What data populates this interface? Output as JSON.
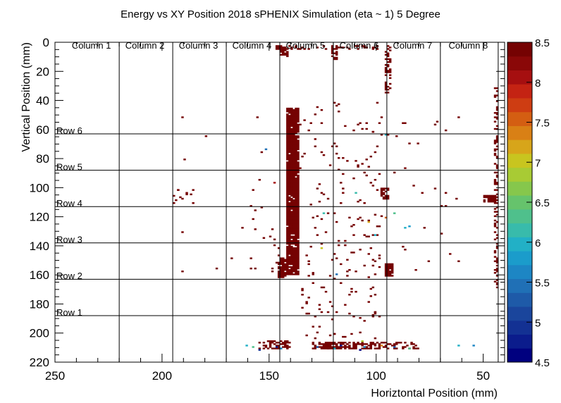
{
  "chart_data": {
    "type": "heatmap",
    "title": "Energy vs XY Position 2018 sPHENIX Simulation (eta ~ 1) 5 Degree",
    "xlabel": "Horiztontal Position (mm)",
    "ylabel": "Vertical Position (mm)",
    "xlim": [
      250,
      40
    ],
    "ylim": [
      0,
      220
    ],
    "x_ticks": [
      250,
      200,
      150,
      100,
      50
    ],
    "y_ticks": [
      0,
      20,
      40,
      60,
      80,
      100,
      120,
      140,
      160,
      180,
      200,
      220
    ],
    "zlim": [
      4.5,
      8.5
    ],
    "z_ticks": [
      "4.5",
      "5",
      "5.5",
      "6",
      "6.5",
      "7",
      "7.5",
      "8",
      "8.5"
    ],
    "palette": [
      "#00007f",
      "#0b1c8c",
      "#133193",
      "#1a459c",
      "#1e5aa8",
      "#2070b6",
      "#1d86c4",
      "#1b9ccb",
      "#22b0c6",
      "#38bbab",
      "#4fc08c",
      "#66c36c",
      "#86c74c",
      "#a8cb34",
      "#c8c51f",
      "#d7a51a",
      "#d98015",
      "#d45e12",
      "#ce3d12",
      "#c42313",
      "#a60f10",
      "#8a0808",
      "#750202"
    ],
    "grid_x": [
      220,
      195,
      170,
      145,
      120,
      95,
      70,
      43
    ],
    "grid_y": [
      63,
      88,
      113,
      138,
      163,
      188
    ],
    "column_labels": [
      {
        "text": "Column 1",
        "x": 233
      },
      {
        "text": "Column 2",
        "x": 208
      },
      {
        "text": "Column 3",
        "x": 183
      },
      {
        "text": "Column 4",
        "x": 158
      },
      {
        "text": "Column 5",
        "x": 133
      },
      {
        "text": "Column 6",
        "x": 108
      },
      {
        "text": "Column 7",
        "x": 83
      },
      {
        "text": "Column 8",
        "x": 57
      }
    ],
    "row_labels": [
      {
        "text": "Row 6",
        "y": 61
      },
      {
        "text": "Row 5",
        "y": 86
      },
      {
        "text": "Row 4",
        "y": 111
      },
      {
        "text": "Row 3",
        "y": 136
      },
      {
        "text": "Row 2",
        "y": 161
      },
      {
        "text": "Row 1",
        "y": 186
      }
    ],
    "dense_regions": [
      {
        "x": [
          136,
          142
        ],
        "y": [
          45,
          160
        ],
        "density": 0.95,
        "z": 8.5
      },
      {
        "x": [
          142,
          146
        ],
        "y": [
          148,
          162
        ],
        "density": 0.8,
        "z": 8.5
      },
      {
        "x": [
          141,
          145
        ],
        "y": [
          2,
          10
        ],
        "density": 0.6,
        "z": 8.5
      },
      {
        "x": [
          92,
          96
        ],
        "y": [
          152,
          161
        ],
        "density": 0.9,
        "z": 8.5
      },
      {
        "x": [
          94,
          98
        ],
        "y": [
          100,
          108
        ],
        "density": 0.6,
        "z": 8.5
      },
      {
        "x": [
          93,
          96
        ],
        "y": [
          2,
          35
        ],
        "density": 0.5,
        "z": 8.5
      },
      {
        "x": [
          118,
          121
        ],
        "y": [
          2,
          12
        ],
        "density": 0.5,
        "z": 8.5
      },
      {
        "x": [
          43,
          45
        ],
        "y": [
          30,
          170
        ],
        "density": 0.35,
        "z": 8.5
      },
      {
        "x": [
          43,
          50
        ],
        "y": [
          105,
          110
        ],
        "density": 0.6,
        "z": 8.5
      },
      {
        "x": [
          100,
          130
        ],
        "y": [
          206,
          211
        ],
        "density": 0.7,
        "z": 8.5
      },
      {
        "x": [
          140,
          155
        ],
        "y": [
          205,
          211
        ],
        "density": 0.45,
        "z": 8.5
      },
      {
        "x": [
          80,
          100
        ],
        "y": [
          206,
          211
        ],
        "density": 0.35,
        "z": 8.5
      },
      {
        "x": [
          142,
          147
        ],
        "y": [
          2,
          6
        ],
        "density": 0.7,
        "z": 8.5
      },
      {
        "x": [
          98,
          142
        ],
        "y": [
          2,
          5
        ],
        "density": 0.25,
        "z": 8.5
      }
    ],
    "scatter_regions": [
      {
        "x": [
          98,
          136
        ],
        "y": [
          40,
          210
        ],
        "count": 200,
        "z": 8.5
      },
      {
        "x": [
          146,
          160
        ],
        "y": [
          90,
          160
        ],
        "count": 20,
        "z": 8.5
      },
      {
        "x": [
          60,
          95
        ],
        "y": [
          50,
          170
        ],
        "count": 25,
        "z": 8.5
      },
      {
        "x": [
          185,
          195
        ],
        "y": [
          100,
          110
        ],
        "count": 12,
        "z": 8.5
      }
    ],
    "points": [
      {
        "x": 191,
        "y": 51,
        "z": 8.5
      },
      {
        "x": 180,
        "y": 64,
        "z": 8.5
      },
      {
        "x": 190,
        "y": 80,
        "z": 8.5
      },
      {
        "x": 154,
        "y": 75,
        "z": 8.5
      },
      {
        "x": 152,
        "y": 73,
        "z": 5.4
      },
      {
        "x": 168,
        "y": 148,
        "z": 8.5
      },
      {
        "x": 156,
        "y": 51,
        "z": 8.5
      },
      {
        "x": 163,
        "y": 127,
        "z": 8.5
      },
      {
        "x": 191,
        "y": 130,
        "z": 8.5
      },
      {
        "x": 191,
        "y": 157,
        "z": 8.5
      },
      {
        "x": 175,
        "y": 155,
        "z": 8.5
      },
      {
        "x": 148,
        "y": 96,
        "z": 8.0
      },
      {
        "x": 68,
        "y": 103,
        "z": 8.5
      },
      {
        "x": 62,
        "y": 150,
        "z": 8.5
      },
      {
        "x": 87,
        "y": 127,
        "z": 6.0
      },
      {
        "x": 85,
        "y": 126,
        "z": 5.8
      },
      {
        "x": 101,
        "y": 132,
        "z": 6.0
      },
      {
        "x": 125,
        "y": 117,
        "z": 6.2
      },
      {
        "x": 119,
        "y": 159,
        "z": 5.5
      },
      {
        "x": 96,
        "y": 63,
        "z": 5.9
      },
      {
        "x": 92,
        "y": 117,
        "z": 6.3
      },
      {
        "x": 104,
        "y": 123,
        "z": 7.2
      },
      {
        "x": 126,
        "y": 141,
        "z": 7.0
      },
      {
        "x": 96,
        "y": 120,
        "z": 7.6
      },
      {
        "x": 110,
        "y": 103,
        "z": 6.1
      },
      {
        "x": 158,
        "y": 209,
        "z": 6.3
      },
      {
        "x": 161,
        "y": 208,
        "z": 5.9
      },
      {
        "x": 155,
        "y": 211,
        "z": 5.0
      },
      {
        "x": 147,
        "y": 209,
        "z": 4.7
      },
      {
        "x": 145,
        "y": 210,
        "z": 5.6
      },
      {
        "x": 128,
        "y": 209,
        "z": 5.2
      },
      {
        "x": 120,
        "y": 210,
        "z": 6.0
      },
      {
        "x": 117,
        "y": 208,
        "z": 4.8
      },
      {
        "x": 106,
        "y": 209,
        "z": 5.7
      },
      {
        "x": 98,
        "y": 208,
        "z": 7.3
      },
      {
        "x": 92,
        "y": 209,
        "z": 5.2
      },
      {
        "x": 85,
        "y": 210,
        "z": 6.4
      },
      {
        "x": 55,
        "y": 208,
        "z": 5.6
      },
      {
        "x": 62,
        "y": 208,
        "z": 6.0
      },
      {
        "x": 107,
        "y": 205,
        "z": 6.8
      },
      {
        "x": 108,
        "y": 211,
        "z": 4.6
      }
    ]
  }
}
